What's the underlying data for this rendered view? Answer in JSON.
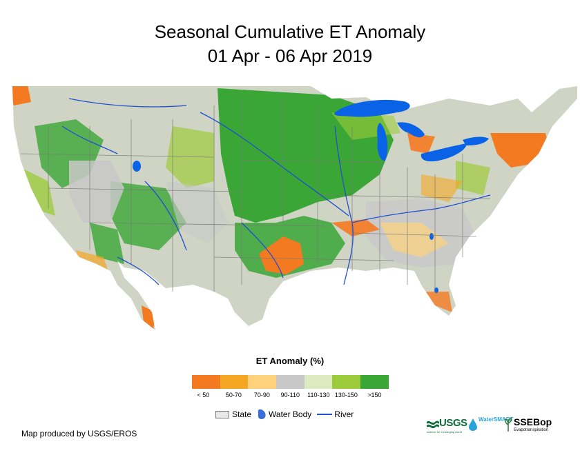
{
  "title": {
    "line1": "Seasonal Cumulative ET Anomaly",
    "line2": "01 Apr - 06 Apr 2019"
  },
  "legend": {
    "title": "ET Anomaly (%)",
    "classes": [
      {
        "label": "< 50",
        "color": "#f47a22"
      },
      {
        "label": "50-70",
        "color": "#f5a623"
      },
      {
        "label": "70-90",
        "color": "#fdd27a"
      },
      {
        "label": "90-110",
        "color": "#c8c8c8"
      },
      {
        "label": "110-130",
        "color": "#dcebbf"
      },
      {
        "label": "130-150",
        "color": "#9ccc3c"
      },
      {
        "label": ">150",
        "color": "#3aa635"
      }
    ]
  },
  "map_legend": {
    "state": "State",
    "water_body": "Water Body",
    "river": "River"
  },
  "colors": {
    "water": "#0a62e6",
    "river": "#1f4fd1",
    "state_border": "#777777"
  },
  "credit": "Map produced by USGS/EROS",
  "logos": {
    "usgs": "USGS",
    "usgs_tagline": "science for a changing world",
    "watersmart": "WaterSMART",
    "ssebop": "SSEBop",
    "ssebop_sub": "Evapotranspiration"
  }
}
